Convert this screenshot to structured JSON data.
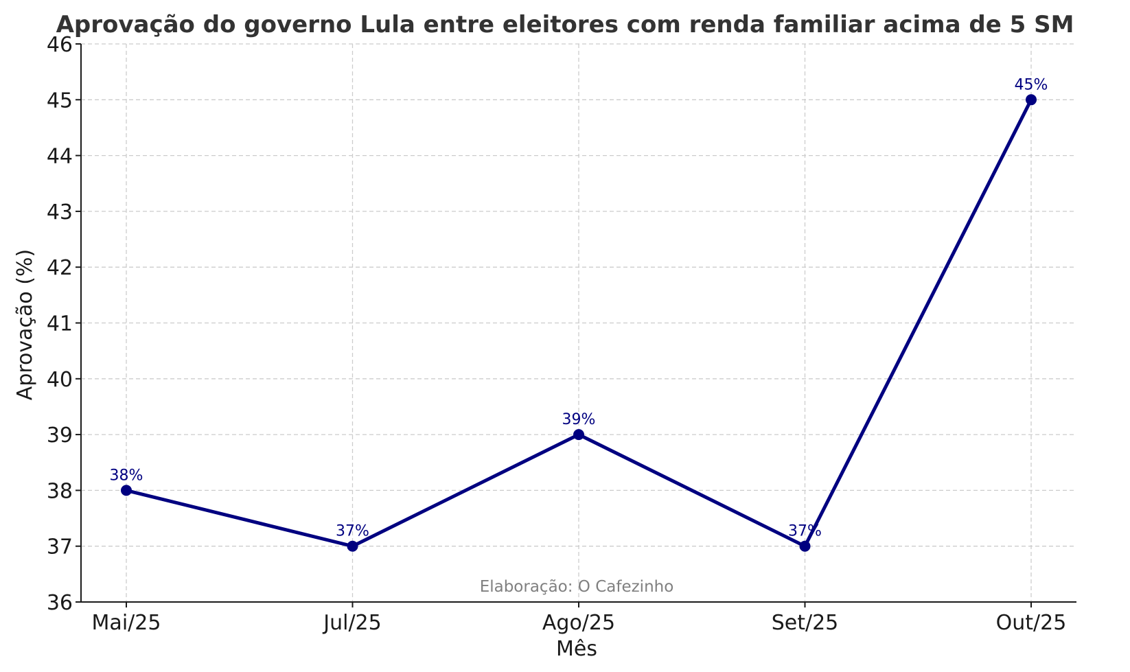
{
  "chart_data": {
    "type": "line",
    "title": "Aprovação do governo Lula entre eleitores com renda familiar acima de 5 SM",
    "xlabel": "Mês",
    "ylabel": "Aprovação (%)",
    "categories": [
      "Mai/25",
      "Jul/25",
      "Ago/25",
      "Set/25",
      "Out/25"
    ],
    "series": [
      {
        "values": [
          38,
          37,
          39,
          37,
          45
        ],
        "data_labels": [
          "38%",
          "37%",
          "39%",
          "37%",
          "45%"
        ]
      }
    ],
    "ylim": [
      36,
      46
    ],
    "yticks": [
      36,
      37,
      38,
      39,
      40,
      41,
      42,
      43,
      44,
      45,
      46
    ],
    "grid": true,
    "line_color": "#000080",
    "annotation": "Elaboração: O Cafezinho"
  }
}
